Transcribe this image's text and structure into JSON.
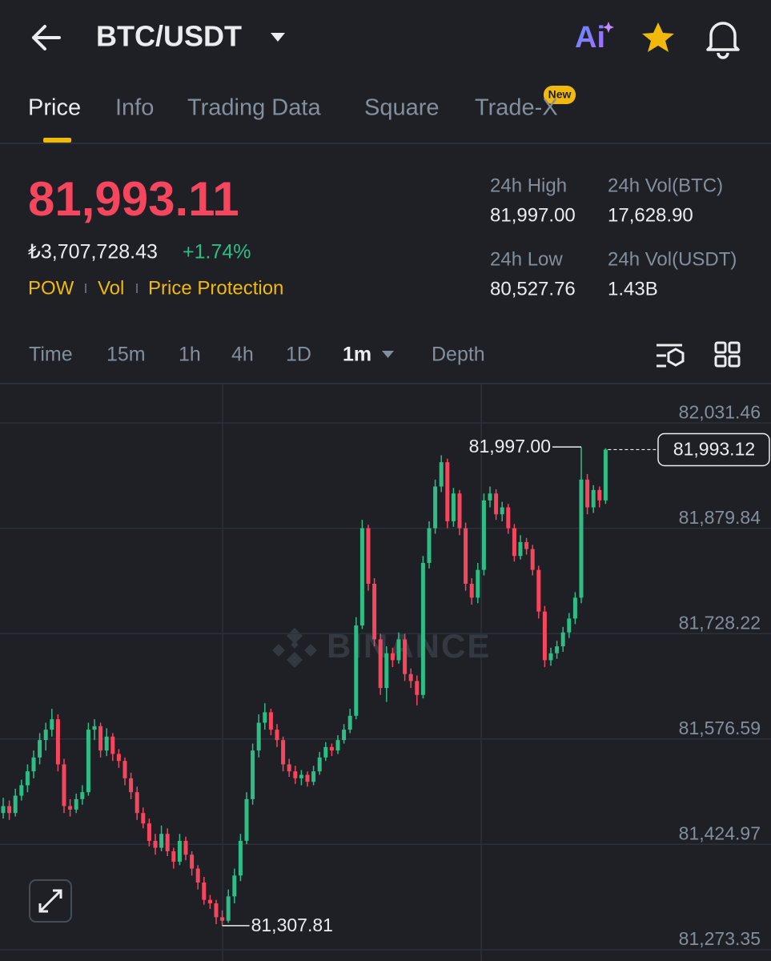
{
  "header": {
    "title": "BTC/USDT",
    "ai_label": "Ai"
  },
  "tabs": {
    "items": [
      "Price",
      "Info",
      "Trading Data",
      "Square",
      "Trade-X"
    ],
    "active": 0,
    "badge": "New"
  },
  "ticker": {
    "price": "81,993.11",
    "fiat": "₺3,707,728.43",
    "change": "+1.74%",
    "tags": [
      "POW",
      "Vol",
      "Price Protection"
    ]
  },
  "stats": [
    {
      "label": "24h High",
      "value": "81,997.00"
    },
    {
      "label": "24h Vol(BTC)",
      "value": "17,628.90"
    },
    {
      "label": "24h Low",
      "value": "80,527.76"
    },
    {
      "label": "24h Vol(USDT)",
      "value": "1.43B"
    }
  ],
  "intervals": {
    "items": [
      "Time",
      "15m",
      "1h",
      "4h",
      "1D",
      "1m",
      "Depth"
    ],
    "active": 5
  },
  "watermark": "BINANCE",
  "chart_data": {
    "type": "candlestick",
    "up_color": "#2ebd85",
    "down_color": "#f6465d",
    "grid": true,
    "ylim": [
      81257,
      82087
    ],
    "yticks": [
      {
        "value": 81273.35,
        "label": "81,273.35"
      },
      {
        "value": 81424.97,
        "label": "81,424.97"
      },
      {
        "value": 81576.59,
        "label": "81,576.59"
      },
      {
        "value": 81728.22,
        "label": "81,728.22"
      },
      {
        "value": 81879.84,
        "label": "81,879.84"
      },
      {
        "value": 82031.46,
        "label": "82,031.46"
      }
    ],
    "high_marker": {
      "value": 81997.0,
      "label": "81,997.00"
    },
    "low_marker": {
      "value": 81307.81,
      "label": "81,307.81"
    },
    "last_price": {
      "value": 81993.12,
      "label": "81,993.12"
    },
    "candles": [
      [
        81470,
        81492,
        81462,
        81480
      ],
      [
        81480,
        81488,
        81460,
        81470
      ],
      [
        81470,
        81505,
        81465,
        81495
      ],
      [
        81495,
        81518,
        81488,
        81510
      ],
      [
        81510,
        81540,
        81500,
        81530
      ],
      [
        81530,
        81560,
        81520,
        81550
      ],
      [
        81550,
        81585,
        81540,
        81575
      ],
      [
        81575,
        81600,
        81560,
        81590
      ],
      [
        81590,
        81620,
        81580,
        81605
      ],
      [
        81605,
        81612,
        81530,
        81540
      ],
      [
        81540,
        81548,
        81470,
        81480
      ],
      [
        81480,
        81490,
        81465,
        81475
      ],
      [
        81475,
        81498,
        81470,
        81490
      ],
      [
        81490,
        81510,
        81482,
        81500
      ],
      [
        81500,
        81600,
        81495,
        81590
      ],
      [
        81590,
        81605,
        81575,
        81595
      ],
      [
        81595,
        81600,
        81550,
        81560
      ],
      [
        81560,
        81592,
        81552,
        81580
      ],
      [
        81580,
        81585,
        81545,
        81555
      ],
      [
        81555,
        81562,
        81535,
        81545
      ],
      [
        81545,
        81550,
        81510,
        81520
      ],
      [
        81520,
        81528,
        81490,
        81500
      ],
      [
        81500,
        81508,
        81460,
        81470
      ],
      [
        81470,
        81478,
        81448,
        81455
      ],
      [
        81455,
        81462,
        81422,
        81430
      ],
      [
        81430,
        81440,
        81410,
        81420
      ],
      [
        81420,
        81452,
        81415,
        81440
      ],
      [
        81440,
        81448,
        81408,
        81415
      ],
      [
        81415,
        81420,
        81390,
        81400
      ],
      [
        81400,
        81440,
        81395,
        81430
      ],
      [
        81430,
        81436,
        81402,
        81410
      ],
      [
        81410,
        81415,
        81380,
        81390
      ],
      [
        81390,
        81395,
        81360,
        81370
      ],
      [
        81370,
        81378,
        81338,
        81345
      ],
      [
        81345,
        81352,
        81332,
        81340
      ],
      [
        81340,
        81345,
        81310,
        81320
      ],
      [
        81320,
        81330,
        81307.81,
        81315
      ],
      [
        81315,
        81360,
        81312,
        81350
      ],
      [
        81350,
        81390,
        81340,
        81380
      ],
      [
        81380,
        81440,
        81372,
        81430
      ],
      [
        81430,
        81500,
        81425,
        81490
      ],
      [
        81490,
        81570,
        81482,
        81560
      ],
      [
        81560,
        81612,
        81550,
        81600
      ],
      [
        81600,
        81628,
        81590,
        81615
      ],
      [
        81615,
        81620,
        81582,
        81590
      ],
      [
        81590,
        81598,
        81565,
        81575
      ],
      [
        81575,
        81580,
        81530,
        81540
      ],
      [
        81540,
        81548,
        81522,
        81530
      ],
      [
        81530,
        81538,
        81512,
        81520
      ],
      [
        81520,
        81532,
        81510,
        81525
      ],
      [
        81525,
        81530,
        81508,
        81515
      ],
      [
        81515,
        81538,
        81510,
        81530
      ],
      [
        81530,
        81558,
        81525,
        81550
      ],
      [
        81550,
        81572,
        81545,
        81565
      ],
      [
        81565,
        81570,
        81552,
        81560
      ],
      [
        81560,
        81582,
        81555,
        81575
      ],
      [
        81575,
        81598,
        81570,
        81590
      ],
      [
        81590,
        81620,
        81585,
        81610
      ],
      [
        81610,
        81752,
        81605,
        81740
      ],
      [
        81740,
        81892,
        81735,
        81880
      ],
      [
        81880,
        81885,
        81790,
        81800
      ],
      [
        81800,
        81808,
        81710,
        81720
      ],
      [
        81720,
        81728,
        81640,
        81650
      ],
      [
        81650,
        81710,
        81630,
        81700
      ],
      [
        81700,
        81708,
        81680,
        81690
      ],
      [
        81690,
        81730,
        81685,
        81720
      ],
      [
        81720,
        81728,
        81660,
        81670
      ],
      [
        81670,
        81678,
        81650,
        81660
      ],
      [
        81660,
        81668,
        81625,
        81640
      ],
      [
        81640,
        81840,
        81635,
        81830
      ],
      [
        81830,
        81890,
        81822,
        81880
      ],
      [
        81880,
        81950,
        81872,
        81940
      ],
      [
        81940,
        81985,
        81932,
        81975
      ],
      [
        81975,
        81980,
        81880,
        81890
      ],
      [
        81890,
        81938,
        81882,
        81930
      ],
      [
        81930,
        81935,
        81870,
        81880
      ],
      [
        81880,
        81888,
        81790,
        81800
      ],
      [
        81800,
        81808,
        81770,
        81780
      ],
      [
        81780,
        81830,
        81772,
        81820
      ],
      [
        81820,
        81930,
        81812,
        81920
      ],
      [
        81920,
        81940,
        81910,
        81930
      ],
      [
        81930,
        81936,
        81892,
        81900
      ],
      [
        81900,
        81918,
        81890,
        81910
      ],
      [
        81910,
        81915,
        81872,
        81880
      ],
      [
        81880,
        81886,
        81832,
        81840
      ],
      [
        81840,
        81870,
        81835,
        81860
      ],
      [
        81860,
        81866,
        81842,
        81850
      ],
      [
        81850,
        81856,
        81812,
        81820
      ],
      [
        81820,
        81826,
        81750,
        81760
      ],
      [
        81760,
        81768,
        81680,
        81690
      ],
      [
        81690,
        81708,
        81682,
        81700
      ],
      [
        81700,
        81718,
        81692,
        81710
      ],
      [
        81710,
        81738,
        81702,
        81730
      ],
      [
        81730,
        81758,
        81722,
        81750
      ],
      [
        81750,
        81788,
        81742,
        81780
      ],
      [
        81780,
        81997,
        81772,
        81950
      ],
      [
        81950,
        81958,
        81900,
        81910
      ],
      [
        81910,
        81942,
        81902,
        81935
      ],
      [
        81935,
        81940,
        81910,
        81920
      ],
      [
        81920,
        81995,
        81915,
        81993.12
      ]
    ]
  }
}
